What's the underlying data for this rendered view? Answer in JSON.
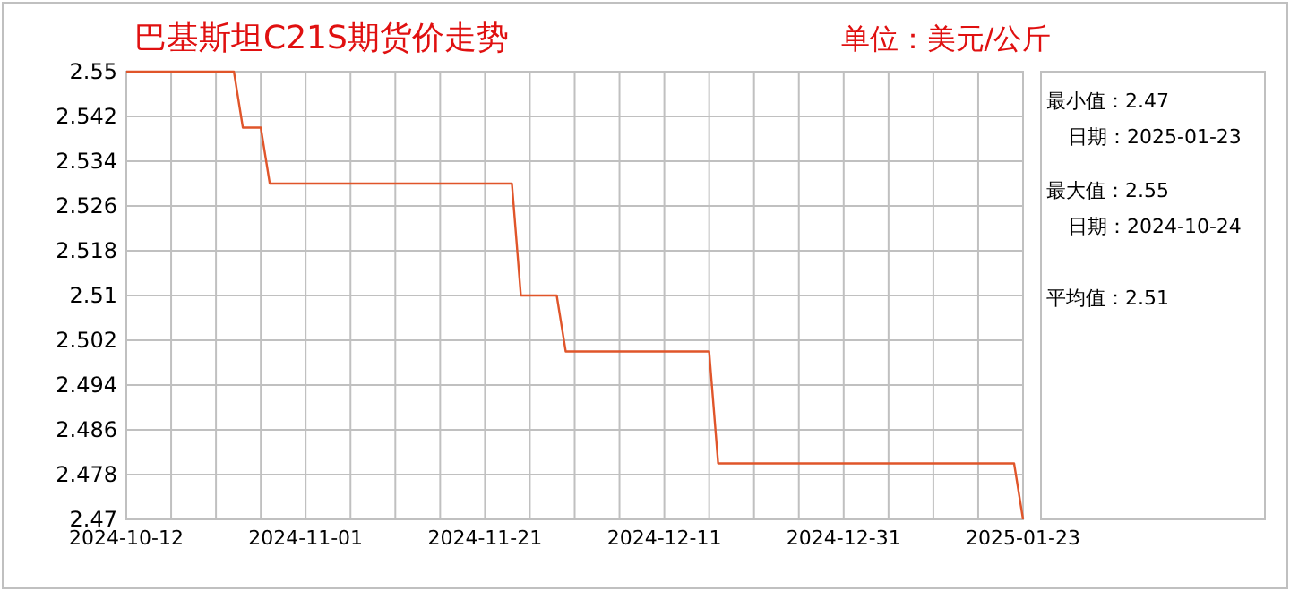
{
  "chart_data": {
    "type": "line",
    "title": "巴基斯坦C21S期货价走势",
    "subtitle": "单位：美元/公斤",
    "annotations": [
      "最小值：2.47",
      "日期：2025-01-23",
      "最大值：2.55",
      "日期：2024-10-24",
      "平均值：2.51"
    ],
    "categories": [
      "2024-10-12",
      null,
      null,
      null,
      null,
      null,
      null,
      null,
      null,
      null,
      null,
      null,
      null,
      null,
      null,
      null,
      null,
      null,
      null,
      null,
      "2024-11-01",
      null,
      null,
      null,
      null,
      null,
      null,
      null,
      null,
      null,
      null,
      null,
      null,
      null,
      null,
      null,
      null,
      null,
      null,
      null,
      "2024-11-21",
      null,
      null,
      null,
      null,
      null,
      null,
      null,
      null,
      null,
      null,
      null,
      null,
      null,
      null,
      null,
      null,
      null,
      null,
      null,
      "2024-12-11",
      null,
      null,
      null,
      null,
      null,
      null,
      null,
      null,
      null,
      null,
      null,
      null,
      null,
      null,
      null,
      null,
      null,
      null,
      null,
      "2024-12-31",
      null,
      null,
      null,
      null,
      null,
      null,
      null,
      null,
      null,
      null,
      null,
      null,
      null,
      null,
      null,
      null,
      null,
      null,
      null,
      "2025-01-23"
    ],
    "series": [
      {
        "color": "#e0552a",
        "values": [
          2.55,
          2.55,
          2.55,
          2.55,
          2.55,
          2.55,
          2.55,
          2.55,
          2.55,
          2.55,
          2.55,
          2.55,
          2.55,
          2.54,
          2.54,
          2.54,
          2.53,
          2.53,
          2.53,
          2.53,
          2.53,
          2.53,
          2.53,
          2.53,
          2.53,
          2.53,
          2.53,
          2.53,
          2.53,
          2.53,
          2.53,
          2.53,
          2.53,
          2.53,
          2.53,
          2.53,
          2.53,
          2.53,
          2.53,
          2.53,
          2.53,
          2.53,
          2.53,
          2.53,
          2.51,
          2.51,
          2.51,
          2.51,
          2.51,
          2.5,
          2.5,
          2.5,
          2.5,
          2.5,
          2.5,
          2.5,
          2.5,
          2.5,
          2.5,
          2.5,
          2.5,
          2.5,
          2.5,
          2.5,
          2.5,
          2.5,
          2.48,
          2.48,
          2.48,
          2.48,
          2.48,
          2.48,
          2.48,
          2.48,
          2.48,
          2.48,
          2.48,
          2.48,
          2.48,
          2.48,
          2.48,
          2.48,
          2.48,
          2.48,
          2.48,
          2.48,
          2.48,
          2.48,
          2.48,
          2.48,
          2.48,
          2.48,
          2.48,
          2.48,
          2.48,
          2.48,
          2.48,
          2.48,
          2.48,
          2.48,
          2.47
        ]
      }
    ],
    "ylim": [
      2.47,
      2.55
    ],
    "yticks": [
      2.47,
      2.478,
      2.486,
      2.494,
      2.502,
      2.51,
      2.518,
      2.526,
      2.534,
      2.542,
      2.55
    ],
    "grid": true,
    "marker": "none",
    "line_style": "solid"
  }
}
